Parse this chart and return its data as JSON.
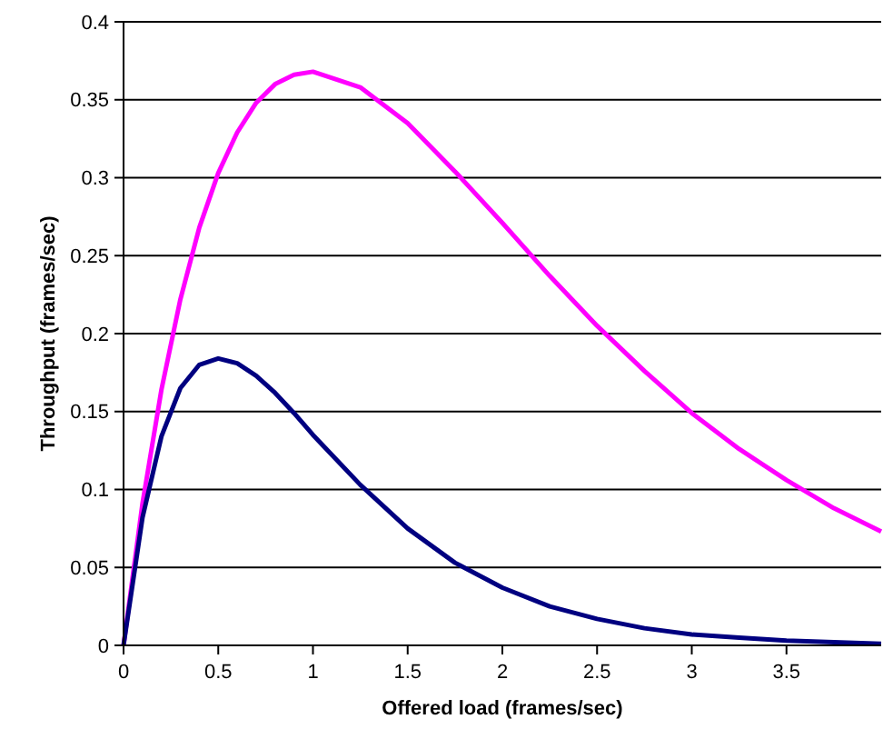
{
  "chart_data": {
    "type": "line",
    "xlabel": "Offered load (frames/sec)",
    "ylabel": "Throughput (frames/sec)",
    "x": [
      0,
      0.1,
      0.2,
      0.3,
      0.4,
      0.5,
      0.6,
      0.7,
      0.8,
      0.9,
      1,
      1.25,
      1.5,
      1.75,
      2,
      2.25,
      2.5,
      2.75,
      3,
      3.25,
      3.5,
      3.75,
      4
    ],
    "series": [
      {
        "color": "#ff00ff",
        "values": [
          0,
          0.091,
          0.164,
          0.222,
          0.268,
          0.303,
          0.329,
          0.348,
          0.36,
          0.366,
          0.368,
          0.358,
          0.335,
          0.304,
          0.271,
          0.237,
          0.205,
          0.176,
          0.149,
          0.126,
          0.106,
          0.088,
          0.073
        ]
      },
      {
        "color": "#000080",
        "values": [
          0,
          0.082,
          0.134,
          0.165,
          0.18,
          0.184,
          0.181,
          0.173,
          0.162,
          0.149,
          0.135,
          0.103,
          0.075,
          0.053,
          0.037,
          0.025,
          0.017,
          0.011,
          0.007,
          0.005,
          0.003,
          0.002,
          0.001
        ]
      }
    ],
    "xlim": [
      0,
      4
    ],
    "xticks": [
      0,
      0.5,
      1,
      1.5,
      2,
      2.5,
      3,
      3.5
    ],
    "ylim": [
      0,
      0.4
    ],
    "yticks": [
      0,
      0.05,
      0.1,
      0.15,
      0.2,
      0.25,
      0.3,
      0.35,
      0.4
    ],
    "grid": "y",
    "marker": "none",
    "line_style": "solid"
  }
}
